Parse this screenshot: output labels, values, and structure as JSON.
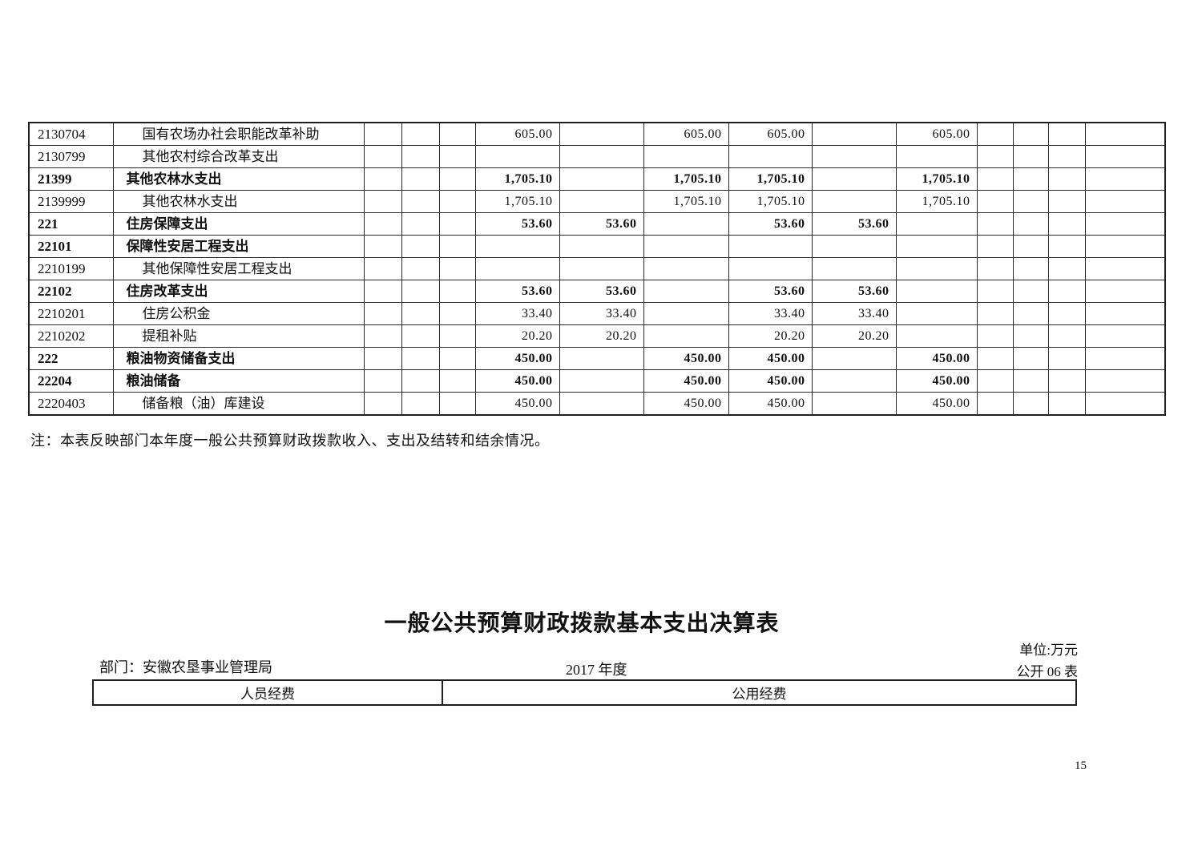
{
  "main_table": {
    "rows": [
      {
        "code": "2130704",
        "name": "国有农场办社会职能改革补助",
        "bold": false,
        "values": [
          "",
          "",
          "",
          "605.00",
          "",
          "605.00",
          "605.00",
          "",
          "605.00",
          "",
          "",
          "",
          ""
        ]
      },
      {
        "code": "2130799",
        "name": "其他农村综合改革支出",
        "bold": false,
        "values": [
          "",
          "",
          "",
          "",
          "",
          "",
          "",
          "",
          "",
          "",
          "",
          "",
          ""
        ]
      },
      {
        "code": "21399",
        "name": "其他农林水支出",
        "bold": true,
        "values": [
          "",
          "",
          "",
          "1,705.10",
          "",
          "1,705.10",
          "1,705.10",
          "",
          "1,705.10",
          "",
          "",
          "",
          ""
        ]
      },
      {
        "code": "2139999",
        "name": "其他农林水支出",
        "bold": false,
        "values": [
          "",
          "",
          "",
          "1,705.10",
          "",
          "1,705.10",
          "1,705.10",
          "",
          "1,705.10",
          "",
          "",
          "",
          ""
        ]
      },
      {
        "code": "221",
        "name": "住房保障支出",
        "bold": true,
        "values": [
          "",
          "",
          "",
          "53.60",
          "53.60",
          "",
          "53.60",
          "53.60",
          "",
          "",
          "",
          "",
          ""
        ]
      },
      {
        "code": "22101",
        "name": "保障性安居工程支出",
        "bold": true,
        "values": [
          "",
          "",
          "",
          "",
          "",
          "",
          "",
          "",
          "",
          "",
          "",
          "",
          ""
        ]
      },
      {
        "code": "2210199",
        "name": "其他保障性安居工程支出",
        "bold": false,
        "values": [
          "",
          "",
          "",
          "",
          "",
          "",
          "",
          "",
          "",
          "",
          "",
          "",
          ""
        ]
      },
      {
        "code": "22102",
        "name": "住房改革支出",
        "bold": true,
        "values": [
          "",
          "",
          "",
          "53.60",
          "53.60",
          "",
          "53.60",
          "53.60",
          "",
          "",
          "",
          "",
          ""
        ]
      },
      {
        "code": "2210201",
        "name": "住房公积金",
        "bold": false,
        "values": [
          "",
          "",
          "",
          "33.40",
          "33.40",
          "",
          "33.40",
          "33.40",
          "",
          "",
          "",
          "",
          ""
        ]
      },
      {
        "code": "2210202",
        "name": "提租补贴",
        "bold": false,
        "values": [
          "",
          "",
          "",
          "20.20",
          "20.20",
          "",
          "20.20",
          "20.20",
          "",
          "",
          "",
          "",
          ""
        ]
      },
      {
        "code": "222",
        "name": "粮油物资储备支出",
        "bold": true,
        "values": [
          "",
          "",
          "",
          "450.00",
          "",
          "450.00",
          "450.00",
          "",
          "450.00",
          "",
          "",
          "",
          ""
        ]
      },
      {
        "code": "22204",
        "name": "粮油储备",
        "bold": true,
        "values": [
          "",
          "",
          "",
          "450.00",
          "",
          "450.00",
          "450.00",
          "",
          "450.00",
          "",
          "",
          "",
          ""
        ]
      },
      {
        "code": "2220403",
        "name": "储备粮（油）库建设",
        "bold": false,
        "values": [
          "",
          "",
          "",
          "450.00",
          "",
          "450.00",
          "450.00",
          "",
          "450.00",
          "",
          "",
          "",
          ""
        ]
      }
    ]
  },
  "note": "注：本表反映部门本年度一般公共预算财政拨款收入、支出及结转和结余情况。",
  "section2": {
    "title": "一般公共预算财政拨款基本支出决算表",
    "department": "部门：安徽农垦事业管理局",
    "period": "2017 年度",
    "unit": "单位:万元",
    "sheet_code": "公开 06 表",
    "columns": [
      "人员经费",
      "公用经费"
    ]
  },
  "page": {
    "number": "15"
  }
}
